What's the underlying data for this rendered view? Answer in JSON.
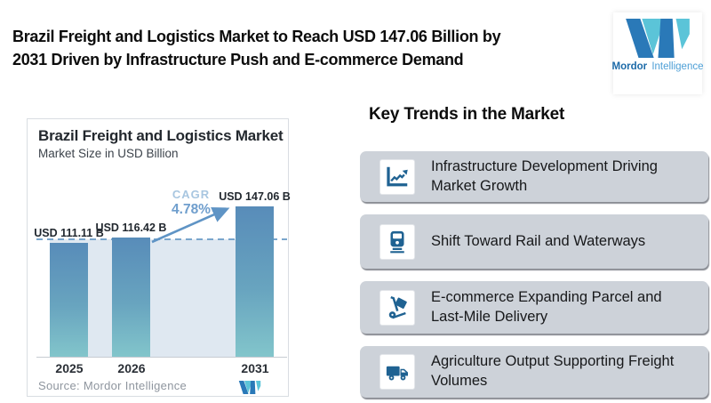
{
  "header": {
    "title_line1": "Brazil Freight and Logistics Market to Reach USD 147.06 Billion by",
    "title_line2": "2031 Driven by Infrastructure Push and E-commerce Demand"
  },
  "brand": {
    "name_bold": "Mordor",
    "name_light": "Intelligence"
  },
  "chart": {
    "title": "Brazil Freight and Logistics Market",
    "subtitle": "Market Size in USD Billion",
    "cagr_label": "CAGR",
    "cagr_value": "4.78%",
    "source": "Source: Mordor Intelligence"
  },
  "chart_data": {
    "type": "bar",
    "title": "Brazil Freight and Logistics Market",
    "subtitle": "Market Size in USD Billion",
    "categories": [
      "2025",
      "2026",
      "2031"
    ],
    "values": [
      111.11,
      116.42,
      147.06
    ],
    "value_labels": [
      "USD 111.11 B",
      "USD 116.42 B",
      "USD 147.06 B"
    ],
    "unit": "USD Billion",
    "cagr": "4.78%",
    "annotations": [
      "CAGR 4.78% arrow from 2026 bar to 2031 bar",
      "dashed reference line at 2026 level"
    ],
    "grid": false,
    "source": "Source: Mordor Intelligence"
  },
  "trends": {
    "heading": "Key Trends in the Market",
    "items": [
      {
        "icon": "line-chart-icon",
        "label": "Infrastructure Development Driving Market Growth"
      },
      {
        "icon": "train-icon",
        "label": "Shift Toward Rail and Waterways"
      },
      {
        "icon": "hand-truck-icon",
        "label": "E-commerce Expanding Parcel and Last-Mile Delivery"
      },
      {
        "icon": "delivery-truck-icon",
        "label": "Agriculture Output Supporting Freight Volumes"
      }
    ]
  },
  "colors": {
    "bar_top": "#588cb9",
    "bar_bottom": "#82c5cb",
    "dashed_line": "#7aa6cc",
    "under_fill": "#dfe8f1",
    "cagr_text": "#6f9ecd",
    "arrow": "#5f94c5",
    "trend_card_bg": "#cdd2d9",
    "icon_blue": "#1f6292",
    "brand_blue": "#2a79b8",
    "brand_teal": "#5bc4d8"
  }
}
